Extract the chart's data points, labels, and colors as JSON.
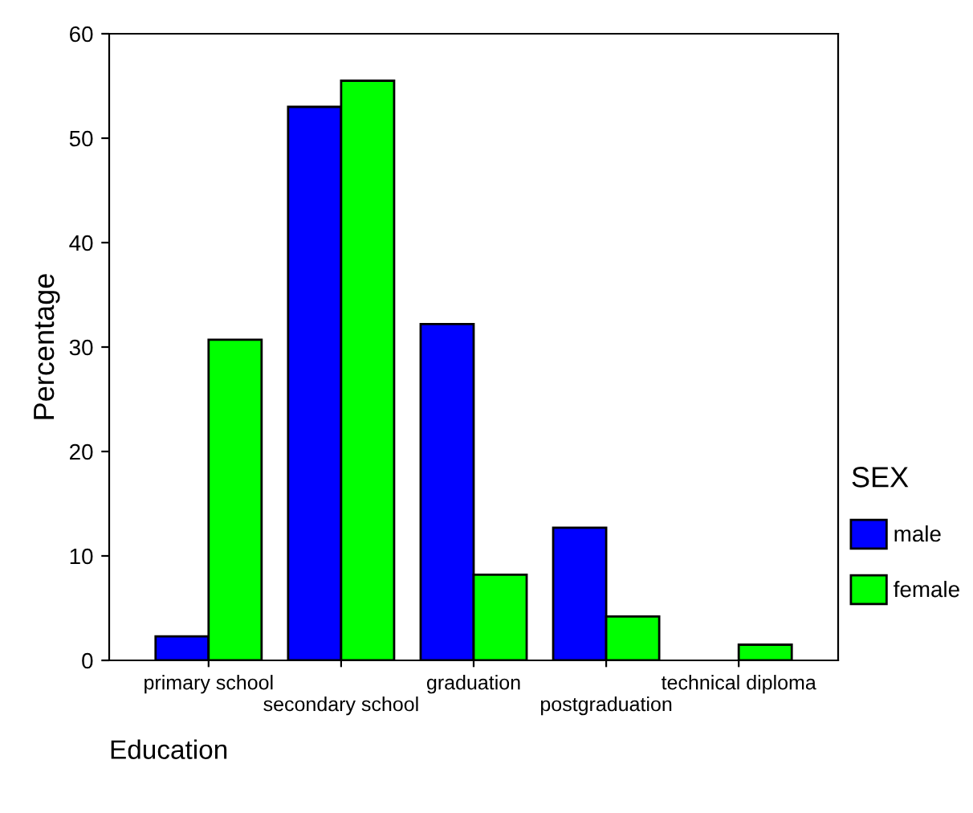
{
  "chart_data": {
    "type": "bar",
    "xlabel": "Education",
    "ylabel": "Percentage",
    "legend_title": "SEX",
    "legend": "right",
    "grid": false,
    "categories": [
      "primary school",
      "secondary school",
      "graduation",
      "postgraduation",
      "technical diploma"
    ],
    "ylim": [
      0,
      60
    ],
    "yticks": [
      0,
      10,
      20,
      30,
      40,
      50,
      60
    ],
    "series": [
      {
        "name": "male",
        "color": "#0000ff",
        "values": [
          2.3,
          53.0,
          32.2,
          12.7,
          null
        ]
      },
      {
        "name": "female",
        "color": "#00ff00",
        "values": [
          30.7,
          55.5,
          8.2,
          4.2,
          1.5
        ]
      }
    ]
  }
}
